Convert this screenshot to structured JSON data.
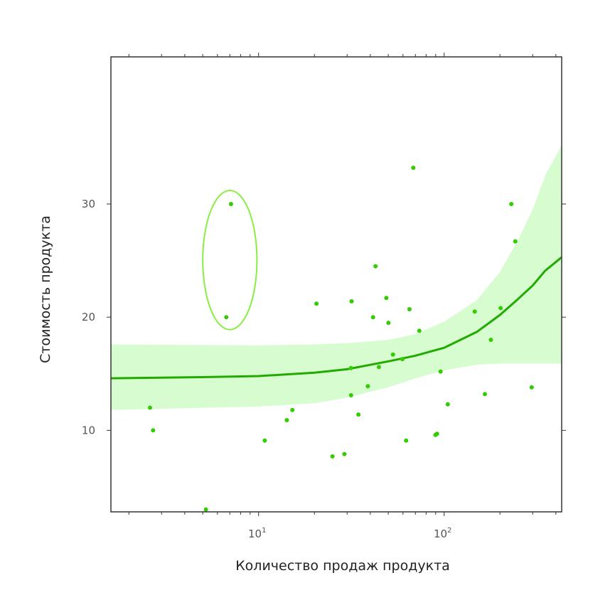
{
  "chart_data": {
    "type": "scatter",
    "title": "",
    "xlabel": "Количество продаж продукта",
    "ylabel": "Стоимость продукта",
    "x_scale": "log10",
    "xlim": [
      1.6,
      430
    ],
    "ylim": [
      2.8,
      43
    ],
    "x_tick_labels": [
      {
        "value": 10,
        "base": "10",
        "exp": "1"
      },
      {
        "value": 100,
        "base": "10",
        "exp": "2"
      }
    ],
    "y_ticks": [
      10,
      20,
      30
    ],
    "grid": false,
    "legend": "none",
    "colors": {
      "points": "#33cc00",
      "fit_line": "#22aa00",
      "band": "#d6fcd0",
      "highlight_ellipse": "#88ee44",
      "frame": "#333333"
    },
    "points": [
      {
        "x": 2.6,
        "y": 12.0
      },
      {
        "x": 2.7,
        "y": 10.0
      },
      {
        "x": 5.2,
        "y": 3.0
      },
      {
        "x": 6.7,
        "y": 20.0
      },
      {
        "x": 7.1,
        "y": 30.0
      },
      {
        "x": 10.8,
        "y": 9.1
      },
      {
        "x": 14.2,
        "y": 10.9
      },
      {
        "x": 15.2,
        "y": 11.8
      },
      {
        "x": 20.5,
        "y": 21.2
      },
      {
        "x": 25.0,
        "y": 7.7
      },
      {
        "x": 29.0,
        "y": 7.9
      },
      {
        "x": 31.7,
        "y": 21.4
      },
      {
        "x": 31.5,
        "y": 15.5
      },
      {
        "x": 31.5,
        "y": 13.1
      },
      {
        "x": 34.5,
        "y": 11.4
      },
      {
        "x": 38.8,
        "y": 13.9
      },
      {
        "x": 41.4,
        "y": 20.0
      },
      {
        "x": 42.7,
        "y": 24.5
      },
      {
        "x": 44.5,
        "y": 15.6
      },
      {
        "x": 48.8,
        "y": 21.7
      },
      {
        "x": 50.1,
        "y": 19.5
      },
      {
        "x": 53.0,
        "y": 16.7
      },
      {
        "x": 59.6,
        "y": 16.3
      },
      {
        "x": 62.4,
        "y": 9.1
      },
      {
        "x": 65.0,
        "y": 20.7
      },
      {
        "x": 68.2,
        "y": 33.2
      },
      {
        "x": 73.5,
        "y": 18.8
      },
      {
        "x": 89.8,
        "y": 9.6
      },
      {
        "x": 91.6,
        "y": 9.7
      },
      {
        "x": 95.6,
        "y": 15.2
      },
      {
        "x": 104.6,
        "y": 12.3
      },
      {
        "x": 146.1,
        "y": 20.5
      },
      {
        "x": 165.8,
        "y": 13.2
      },
      {
        "x": 178.6,
        "y": 18.0
      },
      {
        "x": 201.5,
        "y": 20.8
      },
      {
        "x": 230.3,
        "y": 30.0
      },
      {
        "x": 241.9,
        "y": 26.7
      },
      {
        "x": 296.3,
        "y": 13.8
      }
    ],
    "fit_line": [
      {
        "x": 1.6,
        "y": 14.6
      },
      {
        "x": 5,
        "y": 14.7
      },
      {
        "x": 10,
        "y": 14.8
      },
      {
        "x": 20,
        "y": 15.1
      },
      {
        "x": 30,
        "y": 15.4
      },
      {
        "x": 50,
        "y": 16.1
      },
      {
        "x": 70,
        "y": 16.6
      },
      {
        "x": 100,
        "y": 17.3
      },
      {
        "x": 150,
        "y": 18.7
      },
      {
        "x": 200,
        "y": 20.2
      },
      {
        "x": 250,
        "y": 21.6
      },
      {
        "x": 300,
        "y": 22.8
      },
      {
        "x": 350,
        "y": 24.1
      },
      {
        "x": 430,
        "y": 25.3
      }
    ],
    "confidence_band": [
      {
        "x": 1.6,
        "lower": 11.8,
        "upper": 17.6
      },
      {
        "x": 10,
        "lower": 12.1,
        "upper": 17.5
      },
      {
        "x": 20,
        "lower": 12.4,
        "upper": 17.6
      },
      {
        "x": 30,
        "lower": 12.9,
        "upper": 17.7
      },
      {
        "x": 50,
        "lower": 13.8,
        "upper": 18.0
      },
      {
        "x": 70,
        "lower": 14.6,
        "upper": 18.5
      },
      {
        "x": 100,
        "lower": 15.3,
        "upper": 19.6
      },
      {
        "x": 150,
        "lower": 15.8,
        "upper": 21.5
      },
      {
        "x": 200,
        "lower": 15.9,
        "upper": 24.0
      },
      {
        "x": 250,
        "lower": 15.9,
        "upper": 26.8
      },
      {
        "x": 300,
        "lower": 15.9,
        "upper": 29.5
      },
      {
        "x": 350,
        "lower": 15.9,
        "upper": 32.5
      },
      {
        "x": 430,
        "lower": 15.9,
        "upper": 35.2
      }
    ],
    "highlight_ellipse": {
      "center_x": 7.0,
      "center_y": 25.0,
      "x_range": [
        5.0,
        9.8
      ],
      "y_range": [
        18.9,
        31.2
      ]
    }
  }
}
